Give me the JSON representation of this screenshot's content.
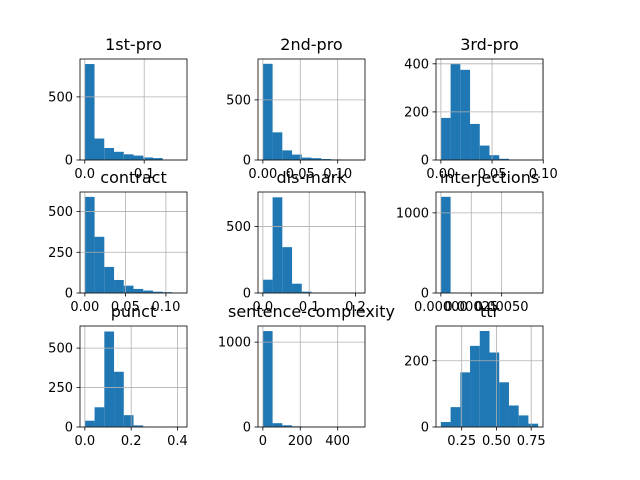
{
  "chart_data": [
    {
      "type": "bar",
      "title": "1st-pro",
      "bin_edges": [
        0,
        0.0164,
        0.0328,
        0.0492,
        0.0656,
        0.082,
        0.0984,
        0.1148,
        0.1312,
        0.1476,
        0.164
      ],
      "values": [
        760,
        170,
        95,
        65,
        45,
        35,
        20,
        15,
        0,
        0
      ],
      "xlim": [
        -0.008,
        0.172
      ],
      "ylim": [
        0,
        800
      ],
      "xticks": [
        {
          "v": 0.0,
          "label": "0.0"
        },
        {
          "v": 0.1,
          "label": "0.1"
        }
      ],
      "yticks": [
        {
          "v": 0,
          "label": "0"
        },
        {
          "v": 500,
          "label": "500"
        }
      ],
      "grid": true
    },
    {
      "type": "bar",
      "title": "2nd-pro",
      "bin_edges": [
        0,
        0.013,
        0.026,
        0.039,
        0.052,
        0.065,
        0.078,
        0.091,
        0.104,
        0.117,
        0.13
      ],
      "values": [
        800,
        230,
        80,
        45,
        20,
        15,
        8,
        5,
        3,
        1
      ],
      "xlim": [
        -0.0065,
        0.1365
      ],
      "ylim": [
        0,
        840
      ],
      "xticks": [
        {
          "v": 0.0,
          "label": "0.00"
        },
        {
          "v": 0.05,
          "label": "0.05"
        },
        {
          "v": 0.1,
          "label": "0.10"
        }
      ],
      "yticks": [
        {
          "v": 0,
          "label": "0"
        },
        {
          "v": 500,
          "label": "500"
        }
      ],
      "grid": true
    },
    {
      "type": "bar",
      "title": "3rd-pro",
      "bin_edges": [
        0,
        0.0095,
        0.019,
        0.0285,
        0.038,
        0.0475,
        0.057,
        0.0665,
        0.076,
        0.0855,
        0.095
      ],
      "values": [
        175,
        400,
        375,
        150,
        60,
        20,
        5,
        2,
        0,
        1
      ],
      "xlim": [
        -0.00475,
        0.09975
      ],
      "ylim": [
        0,
        420
      ],
      "xticks": [
        {
          "v": 0.0,
          "label": "0.00"
        },
        {
          "v": 0.05,
          "label": "0.05"
        },
        {
          "v": 0.1,
          "label": "0.10"
        }
      ],
      "yticks": [
        {
          "v": 0,
          "label": "0"
        },
        {
          "v": 200,
          "label": "200"
        },
        {
          "v": 400,
          "label": "400"
        }
      ],
      "grid": true
    },
    {
      "type": "bar",
      "title": "contract",
      "bin_edges": [
        0,
        0.012,
        0.024,
        0.036,
        0.048,
        0.06,
        0.072,
        0.084,
        0.096,
        0.108,
        0.12
      ],
      "values": [
        590,
        345,
        160,
        80,
        45,
        25,
        15,
        8,
        5,
        2
      ],
      "xlim": [
        -0.006,
        0.126
      ],
      "ylim": [
        0,
        620
      ],
      "xticks": [
        {
          "v": 0.0,
          "label": "0.00"
        },
        {
          "v": 0.05,
          "label": "0.05"
        },
        {
          "v": 0.1,
          "label": "0.10"
        }
      ],
      "yticks": [
        {
          "v": 0,
          "label": "0"
        },
        {
          "v": 250,
          "label": "250"
        },
        {
          "v": 500,
          "label": "500"
        }
      ],
      "grid": true
    },
    {
      "type": "bar",
      "title": "dis-mark",
      "bin_edges": [
        0,
        0.021,
        0.042,
        0.063,
        0.084,
        0.105,
        0.126,
        0.147,
        0.168,
        0.189,
        0.21
      ],
      "values": [
        100,
        720,
        345,
        70,
        10,
        3,
        1,
        0,
        0,
        1
      ],
      "xlim": [
        -0.0105,
        0.2205
      ],
      "ylim": [
        0,
        760
      ],
      "xticks": [
        {
          "v": 0.0,
          "label": "0.0"
        },
        {
          "v": 0.1,
          "label": "0.1"
        },
        {
          "v": 0.2,
          "label": "0.2"
        }
      ],
      "yticks": [
        {
          "v": 0,
          "label": "0"
        },
        {
          "v": 500,
          "label": "500"
        }
      ],
      "grid": true
    },
    {
      "type": "bar",
      "title": "interjections",
      "bin_edges": [
        0,
        8e-05,
        0.00016,
        0.00024,
        0.00032,
        0.0004,
        0.00048,
        0.00056,
        0.00064,
        0.00072,
        0.0008
      ],
      "values": [
        1200,
        0,
        0,
        0,
        0,
        0,
        0,
        0,
        0,
        0
      ],
      "xlim": [
        -4e-05,
        0.00084
      ],
      "ylim": [
        0,
        1260
      ],
      "xticks": [
        {
          "v": 0.0,
          "label": "0.00000"
        },
        {
          "v": 0.00025,
          "label": "0.00025"
        },
        {
          "v": 0.0005,
          "label": "0.00050"
        }
      ],
      "yticks": [
        {
          "v": 0,
          "label": "0"
        },
        {
          "v": 1000,
          "label": "1000"
        }
      ],
      "grid": true
    },
    {
      "type": "bar",
      "title": "punct",
      "bin_edges": [
        0,
        0.042,
        0.084,
        0.126,
        0.168,
        0.21,
        0.252,
        0.294,
        0.336,
        0.378,
        0.42
      ],
      "values": [
        40,
        125,
        605,
        350,
        75,
        10,
        2,
        0,
        0,
        1
      ],
      "xlim": [
        -0.021,
        0.441
      ],
      "ylim": [
        0,
        640
      ],
      "xticks": [
        {
          "v": 0.0,
          "label": "0.0"
        },
        {
          "v": 0.2,
          "label": "0.2"
        },
        {
          "v": 0.4,
          "label": "0.4"
        }
      ],
      "yticks": [
        {
          "v": 0,
          "label": "0"
        },
        {
          "v": 250,
          "label": "250"
        },
        {
          "v": 500,
          "label": "500"
        }
      ],
      "grid": true
    },
    {
      "type": "bar",
      "title": "sentence-complexity",
      "bin_edges": [
        0,
        52,
        104,
        156,
        208,
        260,
        312,
        364,
        416,
        468,
        520
      ],
      "values": [
        1130,
        45,
        20,
        8,
        3,
        1,
        0,
        0,
        0,
        1
      ],
      "xlim": [
        -26,
        546
      ],
      "ylim": [
        0,
        1190
      ],
      "xticks": [
        {
          "v": 0,
          "label": "0"
        },
        {
          "v": 200,
          "label": "200"
        },
        {
          "v": 400,
          "label": "400"
        }
      ],
      "yticks": [
        {
          "v": 0,
          "label": "0"
        },
        {
          "v": 1000,
          "label": "1000"
        }
      ],
      "grid": true
    },
    {
      "type": "bar",
      "title": "ttr",
      "bin_edges": [
        0.1,
        0.17,
        0.24,
        0.31,
        0.38,
        0.45,
        0.52,
        0.59,
        0.66,
        0.73,
        0.8
      ],
      "values": [
        15,
        60,
        165,
        245,
        290,
        225,
        135,
        65,
        35,
        10
      ],
      "xlim": [
        0.065,
        0.835
      ],
      "ylim": [
        0,
        305
      ],
      "xticks": [
        {
          "v": 0.25,
          "label": "0.25"
        },
        {
          "v": 0.5,
          "label": "0.50"
        },
        {
          "v": 0.75,
          "label": "0.75"
        }
      ],
      "yticks": [
        {
          "v": 0,
          "label": "0"
        },
        {
          "v": 200,
          "label": "200"
        }
      ],
      "grid": true
    }
  ],
  "colors": {
    "bar": "#1f77b4",
    "grid": "#b0b0b0",
    "axis": "#000000"
  }
}
